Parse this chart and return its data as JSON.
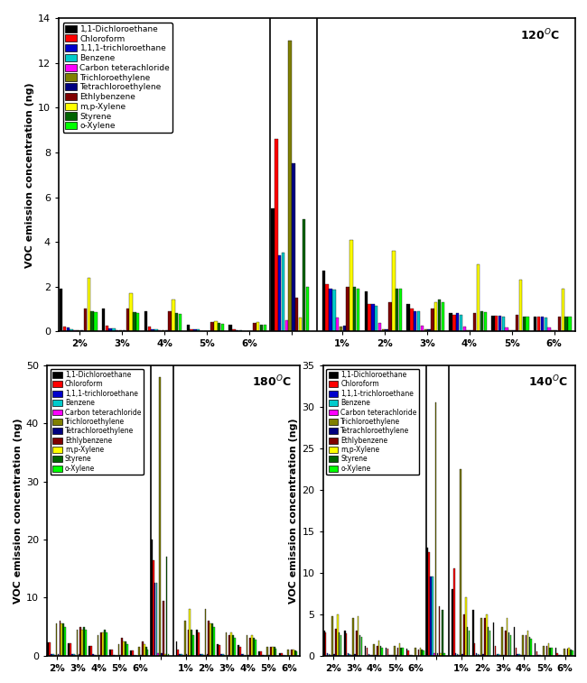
{
  "compounds": [
    "1,1-Dichloroethane",
    "Chloroform",
    "1,1,1-trichloroethane",
    "Benzene",
    "Carbon teterachloride",
    "Trichloroethylene",
    "Tetrachloroethylene",
    "Ethlybenzene",
    "m,p-Xylene",
    "Styrene",
    "o-Xylene"
  ],
  "colors": [
    "#000000",
    "#ff0000",
    "#0000cc",
    "#00cccc",
    "#ff00ff",
    "#808000",
    "#000080",
    "#800000",
    "#ffff00",
    "#006400",
    "#00ff00"
  ],
  "ylabel": "VOC emission concentration (ng)",
  "cats_nc": [
    "2%",
    "3%",
    "4%",
    "5%",
    "6%"
  ],
  "cats_com_120": [
    "1%",
    "2%",
    "3%",
    "4%",
    "5%",
    "6%"
  ],
  "cats_com_180": [
    "1%",
    "2%",
    "3%",
    "4%",
    "5%",
    "6%"
  ],
  "cats_com_140": [
    "1%",
    "2%",
    "3%",
    "4%",
    "5%",
    "6%"
  ],
  "data_120_nc": [
    [
      1.9,
      1.0,
      0.9,
      0.3,
      0.3
    ],
    [
      0.2,
      0.25,
      0.2,
      0.1,
      0.08
    ],
    [
      0.15,
      0.12,
      0.1,
      0.08,
      0.05
    ],
    [
      0.1,
      0.12,
      0.1,
      0.08,
      0.05
    ],
    [
      0.05,
      0.04,
      0.03,
      0.02,
      0.01
    ],
    [
      0.05,
      0.04,
      0.03,
      0.02,
      0.01
    ],
    [
      0.05,
      0.04,
      0.03,
      0.02,
      0.01
    ],
    [
      1.0,
      1.0,
      0.9,
      0.4,
      0.35
    ],
    [
      2.4,
      1.7,
      1.4,
      0.45,
      0.4
    ],
    [
      0.9,
      0.85,
      0.8,
      0.35,
      0.3
    ],
    [
      0.85,
      0.82,
      0.78,
      0.32,
      0.28
    ]
  ],
  "data_120_no": [
    5.5,
    8.6,
    3.4,
    3.5,
    0.5,
    13.0,
    7.5,
    1.5,
    0.6,
    5.0,
    2.0
  ],
  "data_120_com": [
    [
      2.7,
      1.8,
      1.2,
      0.8,
      0.7,
      0.65
    ],
    [
      2.1,
      1.2,
      1.0,
      0.75,
      0.7,
      0.65
    ],
    [
      1.9,
      1.2,
      0.9,
      0.8,
      0.7,
      0.65
    ],
    [
      1.85,
      1.15,
      0.9,
      0.75,
      0.65,
      0.6
    ],
    [
      0.6,
      0.35,
      0.25,
      0.2,
      0.18,
      0.15
    ],
    [
      0.2,
      0.1,
      0.1,
      0.05,
      0.05,
      0.05
    ],
    [
      0.25,
      0.1,
      0.1,
      0.05,
      0.05,
      0.05
    ],
    [
      2.0,
      1.3,
      1.0,
      0.8,
      0.75,
      0.65
    ],
    [
      4.1,
      3.6,
      1.3,
      3.0,
      2.3,
      1.9
    ],
    [
      2.0,
      1.9,
      1.4,
      0.9,
      0.65,
      0.65
    ],
    [
      1.9,
      1.9,
      1.3,
      0.85,
      0.65,
      0.65
    ]
  ],
  "ylim_120": [
    0,
    14
  ],
  "yticks_120": [
    0,
    2,
    4,
    6,
    8,
    10,
    12,
    14
  ],
  "data_180_nc": [
    [
      2.3,
      2.1,
      1.7,
      1.1,
      0.9
    ],
    [
      2.3,
      2.1,
      1.7,
      1.1,
      0.9
    ],
    [
      0.3,
      0.3,
      0.2,
      0.15,
      0.1
    ],
    [
      0.2,
      0.2,
      0.15,
      0.1,
      0.05
    ],
    [
      0.1,
      0.1,
      0.1,
      0.05,
      0.02
    ],
    [
      5.5,
      4.5,
      3.5,
      2.0,
      1.5
    ],
    [
      0.2,
      0.2,
      0.15,
      0.1,
      0.05
    ],
    [
      6.0,
      5.0,
      4.0,
      3.0,
      2.5
    ],
    [
      5.5,
      4.5,
      4.0,
      2.5,
      2.0
    ],
    [
      5.5,
      5.0,
      4.5,
      2.5,
      1.5
    ],
    [
      5.0,
      4.5,
      4.0,
      2.0,
      1.0
    ]
  ],
  "data_180_no": [
    20.0,
    16.5,
    12.5,
    12.5,
    0.5,
    48.0,
    0.5,
    9.5,
    0.3,
    17.0,
    0.3
  ],
  "data_180_com": [
    [
      2.5,
      4.5,
      2.0,
      1.8,
      0.8,
      0.5
    ],
    [
      1.0,
      4.0,
      1.8,
      1.5,
      0.7,
      0.5
    ],
    [
      0.3,
      0.3,
      0.3,
      0.3,
      0.1,
      0.05
    ],
    [
      0.2,
      0.3,
      0.2,
      0.2,
      0.1,
      0.05
    ],
    [
      0.1,
      0.1,
      0.1,
      0.05,
      0.05,
      0.02
    ],
    [
      6.0,
      8.0,
      4.0,
      3.5,
      1.5,
      1.0
    ],
    [
      0.2,
      0.2,
      0.15,
      0.1,
      0.05,
      0.02
    ],
    [
      4.5,
      6.0,
      3.5,
      3.0,
      1.5,
      1.0
    ],
    [
      8.0,
      5.5,
      4.0,
      3.5,
      1.5,
      1.0
    ],
    [
      4.5,
      5.5,
      3.5,
      3.0,
      1.5,
      0.9
    ],
    [
      3.5,
      5.0,
      3.0,
      2.8,
      1.2,
      0.8
    ]
  ],
  "ylim_180": [
    0,
    50
  ],
  "yticks_180": [
    0,
    10,
    20,
    30,
    40,
    50
  ],
  "data_140_nc": [
    [
      3.0,
      3.0,
      1.2,
      1.0,
      0.8
    ],
    [
      2.8,
      2.7,
      1.0,
      0.8,
      0.6
    ],
    [
      0.3,
      0.3,
      0.15,
      0.1,
      0.05
    ],
    [
      0.2,
      0.2,
      0.1,
      0.08,
      0.03
    ],
    [
      0.1,
      0.1,
      0.05,
      0.05,
      0.02
    ],
    [
      4.8,
      4.5,
      1.4,
      1.2,
      0.9
    ],
    [
      0.15,
      0.15,
      0.1,
      0.05,
      0.02
    ],
    [
      3.2,
      3.0,
      1.2,
      1.0,
      0.7
    ],
    [
      5.0,
      4.8,
      1.8,
      1.5,
      1.0
    ],
    [
      2.8,
      2.5,
      1.2,
      1.0,
      0.7
    ],
    [
      2.5,
      2.2,
      1.0,
      0.9,
      0.6
    ]
  ],
  "data_140_no": [
    13.0,
    12.5,
    9.5,
    9.5,
    0.3,
    30.5,
    0.3,
    6.0,
    0.3,
    5.5,
    0.3
  ],
  "data_140_com": [
    [
      8.0,
      5.5,
      4.0,
      3.5,
      1.5,
      1.0
    ],
    [
      10.5,
      1.5,
      1.2,
      1.0,
      0.5,
      0.3
    ],
    [
      0.3,
      0.3,
      0.2,
      0.2,
      0.1,
      0.05
    ],
    [
      0.2,
      0.2,
      0.2,
      0.15,
      0.08,
      0.03
    ],
    [
      0.1,
      0.1,
      0.05,
      0.05,
      0.02,
      0.02
    ],
    [
      22.5,
      4.5,
      3.5,
      2.5,
      1.2,
      0.8
    ],
    [
      0.15,
      0.15,
      0.1,
      0.05,
      0.02,
      0.02
    ],
    [
      5.0,
      4.5,
      3.0,
      2.5,
      1.2,
      0.8
    ],
    [
      7.0,
      5.0,
      4.5,
      3.0,
      1.5,
      0.9
    ],
    [
      3.5,
      3.5,
      2.8,
      2.2,
      1.0,
      0.7
    ],
    [
      3.0,
      3.0,
      2.5,
      2.0,
      0.9,
      0.6
    ]
  ],
  "ylim_140": [
    0,
    35
  ],
  "yticks_140": [
    0,
    5,
    10,
    15,
    20,
    25,
    30,
    35
  ]
}
